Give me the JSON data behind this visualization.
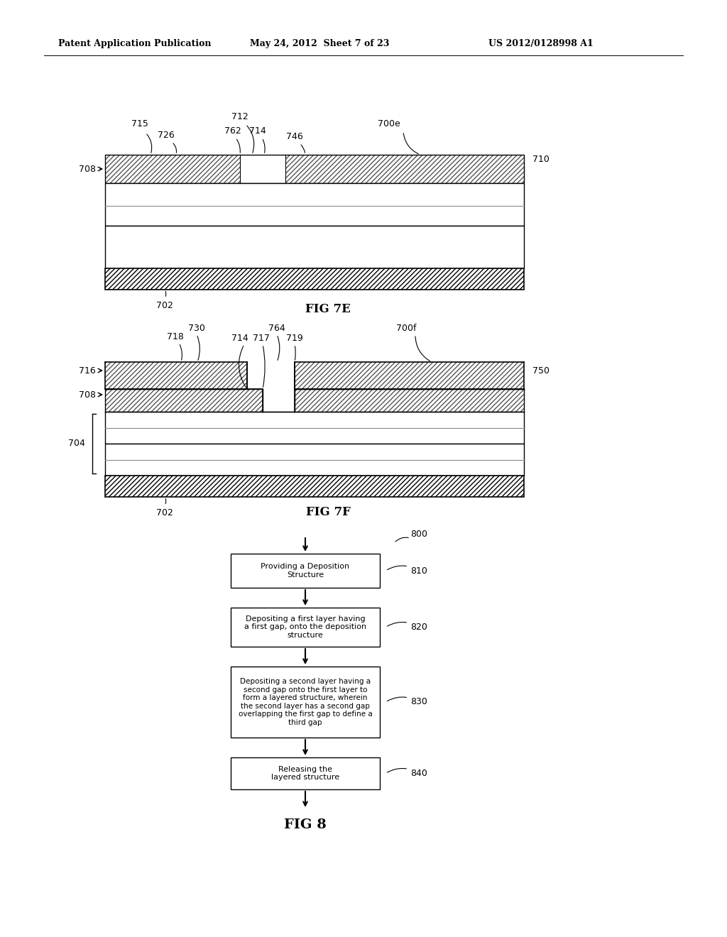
{
  "bg_color": "#ffffff",
  "header_left": "Patent Application Publication",
  "header_mid": "May 24, 2012  Sheet 7 of 23",
  "header_right": "US 2012/0128998 A1",
  "fig7e_label": "FIG 7E",
  "fig7f_label": "FIG 7F",
  "fig8_label": "FIG 8"
}
